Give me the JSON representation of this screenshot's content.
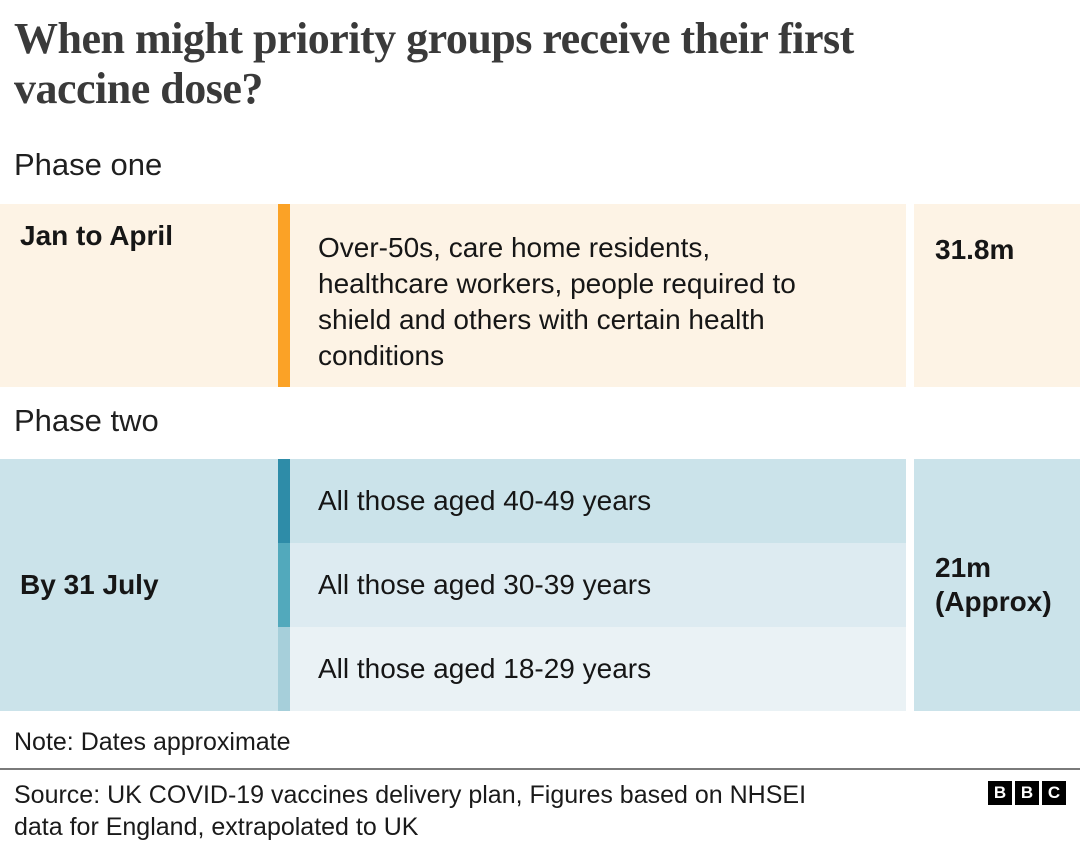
{
  "header": {
    "title": "When might priority groups receive their first vaccine dose?",
    "title_lines": [
      "When might priority groups receive their first",
      "vaccine dose?"
    ]
  },
  "colors": {
    "phase1_bg": "#FDF3E5",
    "phase1_accent": "#FBA226",
    "phase2_cell_bg": "#CBE3EA",
    "divider": "#7A7A7A",
    "title_text": "#3A3A3A",
    "body_text": "#161616"
  },
  "chart_data": {
    "type": "table",
    "title": "When might priority groups receive their first vaccine dose?",
    "phases": [
      {
        "label": "Phase one",
        "period": "Jan to April",
        "total": "31.8m",
        "cell_bg": "#FDF3E5",
        "groups": [
          {
            "text": "Over-50s, care home residents, healthcare workers, people required to shield and others with certain health conditions",
            "lines": [
              "Over-50s, care home residents,",
              "healthcare workers, people required to",
              "shield and others with certain health",
              "conditions"
            ],
            "bar_color": "#FBA226",
            "bg_color": "#FDF3E5"
          }
        ]
      },
      {
        "label": "Phase two",
        "period": "By 31 July",
        "total": "21m",
        "total_note": "(Approx)",
        "cell_bg": "#CBE3EA",
        "groups": [
          {
            "text": "All those aged 40-49 years",
            "bar_color": "#2E8CA8",
            "bg_color": "#CBE3EA"
          },
          {
            "text": "All those aged 30-39 years",
            "bar_color": "#52A9BC",
            "bg_color": "#DDEBF1"
          },
          {
            "text": "All those aged 18-29 years",
            "bar_color": "#A6CFDA",
            "bg_color": "#EAF2F5"
          }
        ]
      }
    ]
  },
  "footer": {
    "note": "Note: Dates approximate",
    "source": "Source: UK COVID-19 vaccines delivery plan, Figures based on NHSEI data for England, extrapolated to UK",
    "source_lines": [
      "Source: UK COVID-19 vaccines delivery plan, Figures based on NHSEI",
      "data for England, extrapolated to UK"
    ],
    "brand_letters": [
      "B",
      "B",
      "C"
    ]
  }
}
